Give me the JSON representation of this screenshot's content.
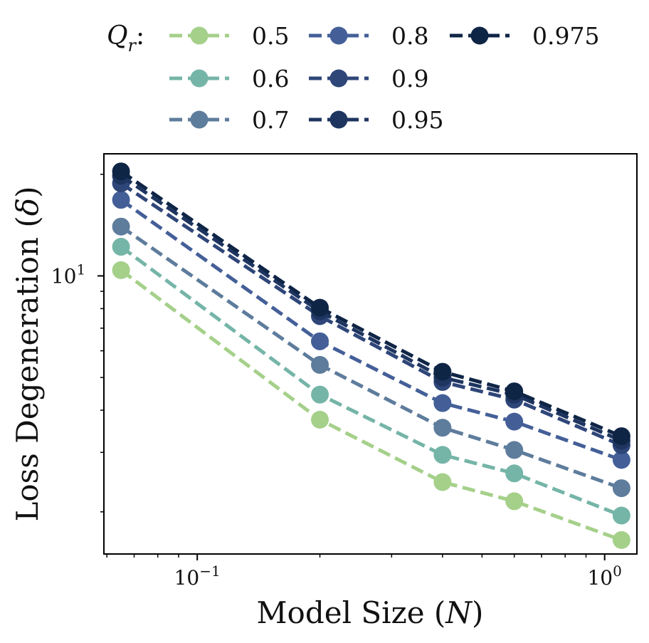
{
  "chart_data": {
    "type": "line",
    "x_scale": "log",
    "y_scale": "log",
    "xlabel_text": "Model Size (",
    "xlabel_symbol": "N",
    "xlabel_close": ")",
    "ylabel_text": "Loss Degeneration (",
    "ylabel_symbol": "δ",
    "ylabel_close": ")",
    "xlim": [
      0.059,
      1.2
    ],
    "ylim": [
      1.5,
      23
    ],
    "x": [
      0.065,
      0.2,
      0.4,
      0.6,
      1.1
    ],
    "x_ticks": [
      {
        "value": 0.1,
        "base": "10",
        "exp": "−1"
      },
      {
        "value": 1,
        "base": "10",
        "exp": "0"
      }
    ],
    "y_ticks": [
      {
        "value": 10,
        "base": "10",
        "exp": "1"
      }
    ],
    "legend": {
      "title_symbol": "Q",
      "title_sub": "r",
      "title_suffix": ":",
      "location": "top"
    },
    "series": [
      {
        "name": "0.5",
        "color": "#a5d08a",
        "values": [
          10.4,
          3.75,
          2.45,
          2.15,
          1.65
        ]
      },
      {
        "name": "0.6",
        "color": "#75b5a8",
        "values": [
          12.2,
          4.45,
          2.95,
          2.6,
          1.95
        ]
      },
      {
        "name": "0.7",
        "color": "#5e7c9c",
        "values": [
          14.0,
          5.45,
          3.55,
          3.05,
          2.35
        ]
      },
      {
        "name": "0.8",
        "color": "#445f98",
        "values": [
          16.8,
          6.4,
          4.2,
          3.7,
          2.85
        ]
      },
      {
        "name": "0.9",
        "color": "#2f4679",
        "values": [
          18.8,
          7.6,
          4.85,
          4.3,
          3.15
        ]
      },
      {
        "name": "0.95",
        "color": "#1e3560",
        "values": [
          19.8,
          7.85,
          5.0,
          4.45,
          3.25
        ]
      },
      {
        "name": "0.975",
        "color": "#0f2546",
        "values": [
          20.4,
          8.05,
          5.2,
          4.55,
          3.35
        ]
      }
    ]
  }
}
